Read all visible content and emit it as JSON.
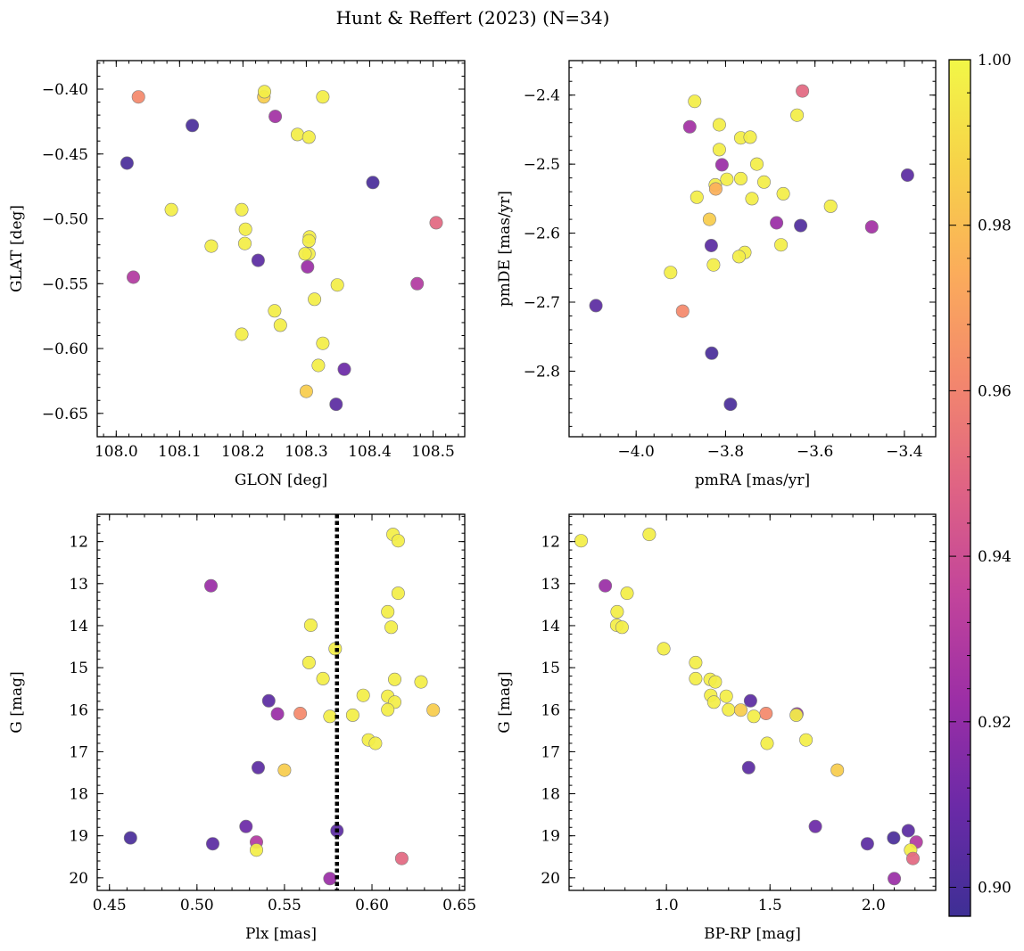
{
  "figure_title": "Hunt & Reffert (2023) (N=34)",
  "chart_data": [
    {
      "type": "scatter",
      "name": "panel-glon-glat",
      "xlabel": "GLON [deg]",
      "ylabel": "GLAT [deg]",
      "xlim": [
        107.97,
        108.55
      ],
      "ylim": [
        -0.668,
        -0.378
      ],
      "y_inverted": false,
      "xticks": [
        108.0,
        108.1,
        108.2,
        108.3,
        108.4,
        108.5
      ],
      "xtick_labels": [
        "108.0",
        "108.1",
        "108.2",
        "108.3",
        "108.4",
        "108.5"
      ],
      "yticks": [
        -0.4,
        -0.45,
        -0.5,
        -0.55,
        -0.6,
        -0.65
      ],
      "ytick_labels": [
        "−0.40",
        "−0.45",
        "−0.50",
        "−0.55",
        "−0.60",
        "−0.65"
      ],
      "points": [
        {
          "x": 108.035,
          "y": -0.406,
          "c": 0.962
        },
        {
          "x": 108.12,
          "y": -0.428,
          "c": 0.9
        },
        {
          "x": 108.017,
          "y": -0.457,
          "c": 0.9
        },
        {
          "x": 108.027,
          "y": -0.545,
          "c": 0.93
        },
        {
          "x": 108.087,
          "y": -0.493,
          "c": 0.997
        },
        {
          "x": 108.15,
          "y": -0.521,
          "c": 0.997
        },
        {
          "x": 108.198,
          "y": -0.493,
          "c": 0.997
        },
        {
          "x": 108.204,
          "y": -0.508,
          "c": 0.997
        },
        {
          "x": 108.203,
          "y": -0.519,
          "c": 0.997
        },
        {
          "x": 108.224,
          "y": -0.532,
          "c": 0.905
        },
        {
          "x": 108.198,
          "y": -0.589,
          "c": 0.997
        },
        {
          "x": 108.233,
          "y": -0.406,
          "c": 0.985
        },
        {
          "x": 108.234,
          "y": -0.402,
          "c": 0.997
        },
        {
          "x": 108.251,
          "y": -0.421,
          "c": 0.925
        },
        {
          "x": 108.286,
          "y": -0.435,
          "c": 0.997
        },
        {
          "x": 108.304,
          "y": -0.437,
          "c": 0.997
        },
        {
          "x": 108.326,
          "y": -0.406,
          "c": 0.997
        },
        {
          "x": 108.305,
          "y": -0.514,
          "c": 0.997
        },
        {
          "x": 108.304,
          "y": -0.517,
          "c": 0.997
        },
        {
          "x": 108.304,
          "y": -0.527,
          "c": 0.997
        },
        {
          "x": 108.298,
          "y": -0.527,
          "c": 0.997
        },
        {
          "x": 108.302,
          "y": -0.537,
          "c": 0.922
        },
        {
          "x": 108.349,
          "y": -0.551,
          "c": 0.997
        },
        {
          "x": 108.25,
          "y": -0.571,
          "c": 0.997
        },
        {
          "x": 108.259,
          "y": -0.582,
          "c": 0.997
        },
        {
          "x": 108.313,
          "y": -0.562,
          "c": 0.997
        },
        {
          "x": 108.326,
          "y": -0.596,
          "c": 0.997
        },
        {
          "x": 108.319,
          "y": -0.613,
          "c": 0.997
        },
        {
          "x": 108.3,
          "y": -0.633,
          "c": 0.985
        },
        {
          "x": 108.36,
          "y": -0.616,
          "c": 0.91
        },
        {
          "x": 108.347,
          "y": -0.643,
          "c": 0.905
        },
        {
          "x": 108.405,
          "y": -0.472,
          "c": 0.9
        },
        {
          "x": 108.475,
          "y": -0.55,
          "c": 0.93
        },
        {
          "x": 108.505,
          "y": -0.503,
          "c": 0.95
        }
      ]
    },
    {
      "type": "scatter",
      "name": "panel-pmra-pmde",
      "xlabel": "pmRA [mas/yr]",
      "ylabel": "pmDE [mas/yr]",
      "xlim": [
        -4.15,
        -3.33
      ],
      "ylim": [
        -2.895,
        -2.35
      ],
      "y_inverted": false,
      "xticks": [
        -4.0,
        -3.8,
        -3.6,
        -3.4
      ],
      "xtick_labels": [
        "−4.0",
        "−3.8",
        "−3.6",
        "−3.4"
      ],
      "yticks": [
        -2.4,
        -2.5,
        -2.6,
        -2.7,
        -2.8
      ],
      "ytick_labels": [
        "−2.4",
        "−2.5",
        "−2.6",
        "−2.7",
        "−2.8"
      ],
      "points": [
        {
          "x": -3.869,
          "y": -2.409,
          "c": 0.997
        },
        {
          "x": -3.88,
          "y": -2.446,
          "c": 0.925
        },
        {
          "x": -3.814,
          "y": -2.443,
          "c": 0.997
        },
        {
          "x": -3.766,
          "y": -2.462,
          "c": 0.997
        },
        {
          "x": -3.745,
          "y": -2.461,
          "c": 0.997
        },
        {
          "x": -3.814,
          "y": -2.479,
          "c": 0.997
        },
        {
          "x": -3.808,
          "y": -2.501,
          "c": 0.922
        },
        {
          "x": -3.73,
          "y": -2.5,
          "c": 0.997
        },
        {
          "x": -3.797,
          "y": -2.522,
          "c": 0.997
        },
        {
          "x": -3.766,
          "y": -2.521,
          "c": 0.997
        },
        {
          "x": -3.823,
          "y": -2.53,
          "c": 0.997
        },
        {
          "x": -3.822,
          "y": -2.536,
          "c": 0.975
        },
        {
          "x": -3.714,
          "y": -2.526,
          "c": 0.997
        },
        {
          "x": -3.864,
          "y": -2.548,
          "c": 0.997
        },
        {
          "x": -3.741,
          "y": -2.55,
          "c": 0.997
        },
        {
          "x": -3.671,
          "y": -2.543,
          "c": 0.997
        },
        {
          "x": -3.64,
          "y": -2.429,
          "c": 0.997
        },
        {
          "x": -3.628,
          "y": -2.394,
          "c": 0.95
        },
        {
          "x": -3.836,
          "y": -2.58,
          "c": 0.985
        },
        {
          "x": -3.832,
          "y": -2.618,
          "c": 0.905
        },
        {
          "x": -3.686,
          "y": -2.585,
          "c": 0.922
        },
        {
          "x": -3.632,
          "y": -2.589,
          "c": 0.902
        },
        {
          "x": -3.565,
          "y": -2.561,
          "c": 0.997
        },
        {
          "x": -3.676,
          "y": -2.617,
          "c": 0.997
        },
        {
          "x": -3.757,
          "y": -2.628,
          "c": 0.997
        },
        {
          "x": -3.77,
          "y": -2.634,
          "c": 0.997
        },
        {
          "x": -3.827,
          "y": -2.646,
          "c": 0.997
        },
        {
          "x": -3.923,
          "y": -2.657,
          "c": 0.997
        },
        {
          "x": -3.473,
          "y": -2.591,
          "c": 0.925
        },
        {
          "x": -3.393,
          "y": -2.516,
          "c": 0.905
        },
        {
          "x": -4.09,
          "y": -2.705,
          "c": 0.905
        },
        {
          "x": -3.896,
          "y": -2.713,
          "c": 0.962
        },
        {
          "x": -3.831,
          "y": -2.774,
          "c": 0.9
        },
        {
          "x": -3.789,
          "y": -2.848,
          "c": 0.9
        }
      ]
    },
    {
      "type": "scatter",
      "name": "panel-plx-g",
      "xlabel": "Plx [mas]",
      "ylabel": "G [mag]",
      "xlim": [
        0.443,
        0.653
      ],
      "ylim": [
        20.3,
        11.35
      ],
      "y_inverted": true,
      "xticks": [
        0.45,
        0.5,
        0.55,
        0.6,
        0.65
      ],
      "xtick_labels": [
        "0.45",
        "0.50",
        "0.55",
        "0.60",
        "0.65"
      ],
      "yticks": [
        12,
        13,
        14,
        15,
        16,
        17,
        18,
        19,
        20
      ],
      "ytick_labels": [
        "12",
        "13",
        "14",
        "15",
        "16",
        "17",
        "18",
        "19",
        "20"
      ],
      "vline": {
        "x": 0.58,
        "style": "dotted"
      },
      "points": [
        {
          "x": 0.612,
          "y": 11.83,
          "c": 0.997
        },
        {
          "x": 0.615,
          "y": 11.98,
          "c": 0.997
        },
        {
          "x": 0.615,
          "y": 13.23,
          "c": 0.997
        },
        {
          "x": 0.508,
          "y": 13.05,
          "c": 0.922
        },
        {
          "x": 0.609,
          "y": 13.67,
          "c": 0.997
        },
        {
          "x": 0.611,
          "y": 14.04,
          "c": 0.997
        },
        {
          "x": 0.565,
          "y": 13.99,
          "c": 0.997
        },
        {
          "x": 0.579,
          "y": 14.55,
          "c": 0.997
        },
        {
          "x": 0.564,
          "y": 14.88,
          "c": 0.997
        },
        {
          "x": 0.572,
          "y": 15.26,
          "c": 0.997
        },
        {
          "x": 0.613,
          "y": 15.28,
          "c": 0.997
        },
        {
          "x": 0.628,
          "y": 15.34,
          "c": 0.997
        },
        {
          "x": 0.595,
          "y": 15.66,
          "c": 0.997
        },
        {
          "x": 0.609,
          "y": 15.68,
          "c": 0.997
        },
        {
          "x": 0.541,
          "y": 15.79,
          "c": 0.905
        },
        {
          "x": 0.613,
          "y": 15.82,
          "c": 0.997
        },
        {
          "x": 0.609,
          "y": 16.0,
          "c": 0.997
        },
        {
          "x": 0.635,
          "y": 16.01,
          "c": 0.985
        },
        {
          "x": 0.559,
          "y": 16.09,
          "c": 0.962
        },
        {
          "x": 0.546,
          "y": 16.1,
          "c": 0.922
        },
        {
          "x": 0.576,
          "y": 16.16,
          "c": 0.997
        },
        {
          "x": 0.589,
          "y": 16.13,
          "c": 0.997
        },
        {
          "x": 0.598,
          "y": 16.72,
          "c": 0.997
        },
        {
          "x": 0.602,
          "y": 16.8,
          "c": 0.997
        },
        {
          "x": 0.535,
          "y": 17.38,
          "c": 0.905
        },
        {
          "x": 0.55,
          "y": 17.44,
          "c": 0.985
        },
        {
          "x": 0.528,
          "y": 18.78,
          "c": 0.91
        },
        {
          "x": 0.58,
          "y": 18.88,
          "c": 0.905
        },
        {
          "x": 0.534,
          "y": 19.15,
          "c": 0.93
        },
        {
          "x": 0.534,
          "y": 19.34,
          "c": 0.997
        },
        {
          "x": 0.462,
          "y": 19.05,
          "c": 0.9
        },
        {
          "x": 0.509,
          "y": 19.19,
          "c": 0.905
        },
        {
          "x": 0.617,
          "y": 19.54,
          "c": 0.95
        },
        {
          "x": 0.576,
          "y": 20.02,
          "c": 0.922
        }
      ]
    },
    {
      "type": "scatter",
      "name": "panel-bprp-g",
      "xlabel": "BP-RP [mag]",
      "ylabel": "G [mag]",
      "xlim": [
        0.53,
        2.3
      ],
      "ylim": [
        20.3,
        11.35
      ],
      "y_inverted": true,
      "xticks": [
        1.0,
        1.5,
        2.0
      ],
      "xtick_labels": [
        "1.0",
        "1.5",
        "2.0"
      ],
      "yticks": [
        12,
        13,
        14,
        15,
        16,
        17,
        18,
        19,
        20
      ],
      "ytick_labels": [
        "12",
        "13",
        "14",
        "15",
        "16",
        "17",
        "18",
        "19",
        "20"
      ],
      "points": [
        {
          "x": 0.588,
          "y": 11.98,
          "c": 0.997
        },
        {
          "x": 0.917,
          "y": 11.83,
          "c": 0.997
        },
        {
          "x": 0.705,
          "y": 13.05,
          "c": 0.922
        },
        {
          "x": 0.81,
          "y": 13.23,
          "c": 0.997
        },
        {
          "x": 0.762,
          "y": 13.67,
          "c": 0.997
        },
        {
          "x": 0.76,
          "y": 13.99,
          "c": 0.997
        },
        {
          "x": 0.786,
          "y": 14.04,
          "c": 0.997
        },
        {
          "x": 0.987,
          "y": 14.55,
          "c": 0.997
        },
        {
          "x": 1.141,
          "y": 14.88,
          "c": 0.997
        },
        {
          "x": 1.141,
          "y": 15.26,
          "c": 0.997
        },
        {
          "x": 1.211,
          "y": 15.28,
          "c": 0.997
        },
        {
          "x": 1.236,
          "y": 15.34,
          "c": 0.997
        },
        {
          "x": 1.214,
          "y": 15.66,
          "c": 0.997
        },
        {
          "x": 1.289,
          "y": 15.68,
          "c": 0.997
        },
        {
          "x": 1.406,
          "y": 15.79,
          "c": 0.905
        },
        {
          "x": 1.229,
          "y": 15.82,
          "c": 0.997
        },
        {
          "x": 1.3,
          "y": 16.0,
          "c": 0.997
        },
        {
          "x": 1.359,
          "y": 16.01,
          "c": 0.985
        },
        {
          "x": 1.481,
          "y": 16.09,
          "c": 0.962
        },
        {
          "x": 1.63,
          "y": 16.1,
          "c": 0.922
        },
        {
          "x": 1.422,
          "y": 16.16,
          "c": 0.997
        },
        {
          "x": 1.627,
          "y": 16.13,
          "c": 0.997
        },
        {
          "x": 1.674,
          "y": 16.72,
          "c": 0.997
        },
        {
          "x": 1.486,
          "y": 16.8,
          "c": 0.997
        },
        {
          "x": 1.397,
          "y": 17.38,
          "c": 0.905
        },
        {
          "x": 1.825,
          "y": 17.44,
          "c": 0.985
        },
        {
          "x": 1.719,
          "y": 18.78,
          "c": 0.91
        },
        {
          "x": 2.168,
          "y": 18.88,
          "c": 0.905
        },
        {
          "x": 2.206,
          "y": 19.15,
          "c": 0.93
        },
        {
          "x": 2.179,
          "y": 19.34,
          "c": 0.997
        },
        {
          "x": 2.097,
          "y": 19.05,
          "c": 0.9
        },
        {
          "x": 1.97,
          "y": 19.19,
          "c": 0.905
        },
        {
          "x": 2.19,
          "y": 19.54,
          "c": 0.95
        },
        {
          "x": 2.1,
          "y": 20.02,
          "c": 0.922
        }
      ]
    }
  ],
  "colorbar": {
    "cmap": "plasma",
    "range": [
      0.8965,
      1.0
    ],
    "ticks": [
      0.9,
      0.92,
      0.94,
      0.96,
      0.98,
      1.0
    ],
    "tick_labels": [
      "0.90",
      "0.92",
      "0.94",
      "0.96",
      "0.98",
      "1.00"
    ],
    "stops": [
      "#3e2f95",
      "#6a2aa7",
      "#9b2ea6",
      "#c2449b",
      "#df6384",
      "#f3876d",
      "#fbac5b",
      "#f7d249",
      "#f2f747"
    ]
  },
  "marker_edge_color": "#7f7f7f",
  "vline_color": "#000000"
}
